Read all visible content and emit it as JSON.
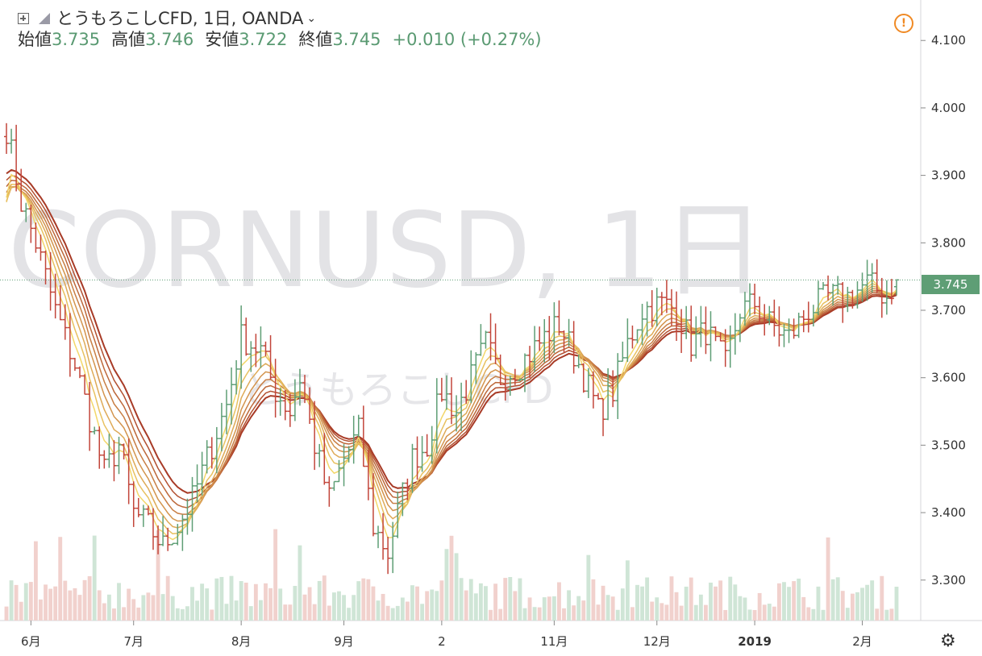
{
  "legend": {
    "symbol": "とうもろこしCFD, 1日, OANDA",
    "open_label": "始値",
    "open": "3.735",
    "high_label": "高値",
    "high": "3.746",
    "low_label": "安値",
    "low": "3.722",
    "close_label": "終値",
    "close": "3.745",
    "change": "+0.010 (+0.27%)"
  },
  "watermark": {
    "main": "CORNUSD, 1日",
    "sub": "とうもろこしCFD"
  },
  "last_price_label": "3.745",
  "icons": {
    "expand": "expand-box-icon",
    "alert": "alert-icon",
    "settings": "gear-icon",
    "dropdown": "chevron-down-icon"
  },
  "colors": {
    "up": "#5e9e75",
    "down": "#c2453a",
    "ribbon_slow": "#a83b27",
    "ribbon_fast": "#f3d76a",
    "volume_up": "#cfe5d6",
    "volume_down": "#f1d1cd"
  },
  "chart_data": {
    "type": "candlestick",
    "ylim": [
      3.24,
      4.16
    ],
    "y_ticks": [
      3.3,
      3.4,
      3.5,
      3.6,
      3.7,
      3.8,
      3.9,
      4.0,
      4.1
    ],
    "y_tick_labels": [
      "3.300",
      "3.400",
      "3.500",
      "3.600",
      "3.700",
      "3.800",
      "3.900",
      "4.000",
      "4.100"
    ],
    "last_price": 3.745,
    "x_ticks": [
      "6月",
      "7月",
      "8月",
      "9月",
      "2",
      "11月",
      "12月",
      "2019",
      "2月"
    ],
    "x_tick_index": [
      5,
      26,
      48,
      69,
      89,
      112,
      133,
      153,
      175
    ],
    "n_bars": 183,
    "close_anchors": [
      [
        0,
        3.97
      ],
      [
        3,
        3.86
      ],
      [
        6,
        3.8
      ],
      [
        10,
        3.7
      ],
      [
        14,
        3.62
      ],
      [
        17,
        3.54
      ],
      [
        20,
        3.46
      ],
      [
        23,
        3.5
      ],
      [
        26,
        3.4
      ],
      [
        29,
        3.38
      ],
      [
        32,
        3.35
      ],
      [
        35,
        3.38
      ],
      [
        38,
        3.42
      ],
      [
        42,
        3.5
      ],
      [
        45,
        3.56
      ],
      [
        48,
        3.66
      ],
      [
        52,
        3.64
      ],
      [
        55,
        3.58
      ],
      [
        58,
        3.55
      ],
      [
        60,
        3.6
      ],
      [
        63,
        3.5
      ],
      [
        66,
        3.42
      ],
      [
        69,
        3.48
      ],
      [
        72,
        3.52
      ],
      [
        75,
        3.38
      ],
      [
        78,
        3.34
      ],
      [
        80,
        3.4
      ],
      [
        83,
        3.48
      ],
      [
        86,
        3.5
      ],
      [
        89,
        3.58
      ],
      [
        92,
        3.55
      ],
      [
        95,
        3.6
      ],
      [
        98,
        3.65
      ],
      [
        101,
        3.6
      ],
      [
        105,
        3.62
      ],
      [
        110,
        3.66
      ],
      [
        113,
        3.68
      ],
      [
        117,
        3.62
      ],
      [
        121,
        3.55
      ],
      [
        124,
        3.58
      ],
      [
        127,
        3.65
      ],
      [
        130,
        3.7
      ],
      [
        134,
        3.71
      ],
      [
        137,
        3.7
      ],
      [
        140,
        3.65
      ],
      [
        143,
        3.67
      ],
      [
        147,
        3.62
      ],
      [
        150,
        3.7
      ],
      [
        153,
        3.71
      ],
      [
        156,
        3.68
      ],
      [
        160,
        3.66
      ],
      [
        164,
        3.7
      ],
      [
        168,
        3.72
      ],
      [
        172,
        3.72
      ],
      [
        176,
        3.74
      ],
      [
        180,
        3.72
      ],
      [
        182,
        3.745
      ]
    ],
    "volume_range": [
      0.4,
      1.0
    ]
  }
}
